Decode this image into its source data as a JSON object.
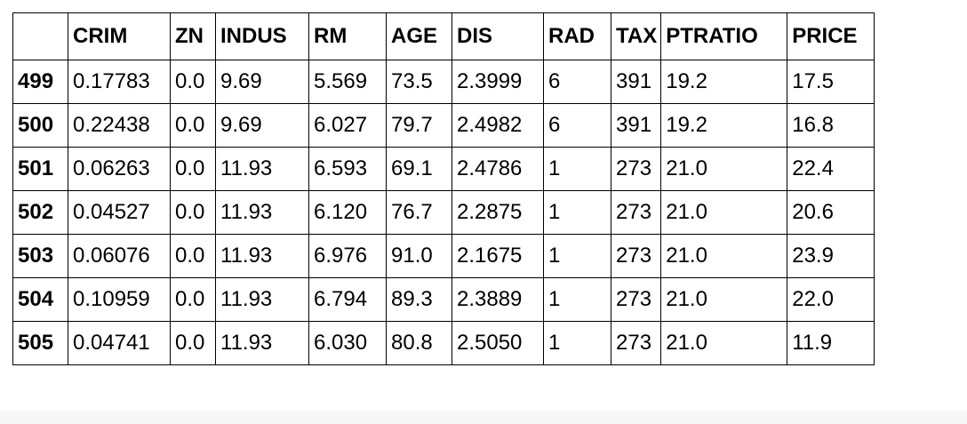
{
  "table": {
    "index_header": "",
    "columns": [
      "CRIM",
      "ZN",
      "INDUS",
      "RM",
      "AGE",
      "DIS",
      "RAD",
      "TAX",
      "PTRATIO",
      "PRICE"
    ],
    "rows": [
      {
        "index": "499",
        "cells": [
          "0.17783",
          "0.0",
          "9.69",
          "5.569",
          "73.5",
          "2.3999",
          "6",
          "391",
          "19.2",
          "17.5"
        ]
      },
      {
        "index": "500",
        "cells": [
          "0.22438",
          "0.0",
          "9.69",
          "6.027",
          "79.7",
          "2.4982",
          "6",
          "391",
          "19.2",
          "16.8"
        ]
      },
      {
        "index": "501",
        "cells": [
          "0.06263",
          "0.0",
          "11.93",
          "6.593",
          "69.1",
          "2.4786",
          "1",
          "273",
          "21.0",
          "22.4"
        ]
      },
      {
        "index": "502",
        "cells": [
          "0.04527",
          "0.0",
          "11.93",
          "6.120",
          "76.7",
          "2.2875",
          "1",
          "273",
          "21.0",
          "20.6"
        ]
      },
      {
        "index": "503",
        "cells": [
          "0.06076",
          "0.0",
          "11.93",
          "6.976",
          "91.0",
          "2.1675",
          "1",
          "273",
          "21.0",
          "23.9"
        ]
      },
      {
        "index": "504",
        "cells": [
          "0.10959",
          "0.0",
          "11.93",
          "6.794",
          "89.3",
          "2.3889",
          "1",
          "273",
          "21.0",
          "22.0"
        ]
      },
      {
        "index": "505",
        "cells": [
          "0.04741",
          "0.0",
          "11.93",
          "6.030",
          "80.8",
          "2.5050",
          "1",
          "273",
          "21.0",
          "11.9"
        ]
      }
    ]
  },
  "colors": {
    "border": "#000000",
    "text": "#000000",
    "background": "#ffffff",
    "bottom_strip": "#f7f7f7"
  }
}
